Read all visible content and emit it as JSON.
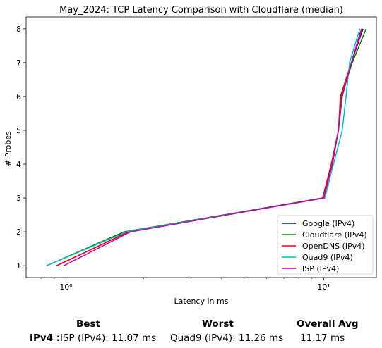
{
  "chart_data": {
    "type": "line",
    "title": "May_2024: TCP Latency Comparison with Cloudflare (median)",
    "xlabel": "Latency in ms",
    "ylabel": "# Probes",
    "xscale": "log",
    "xlim": [
      0.7,
      16
    ],
    "ylim": [
      0.65,
      8.35
    ],
    "xticks": [
      {
        "value": 1,
        "label": "10⁰"
      },
      {
        "value": 10,
        "label": "10¹"
      }
    ],
    "yticks": [
      1,
      2,
      3,
      4,
      5,
      6,
      7,
      8
    ],
    "grid": false,
    "legend_position": "lower-right",
    "series": [
      {
        "name": "Google (IPv4)",
        "color": "#0000cc",
        "points": [
          [
            0.92,
            1
          ],
          [
            1.75,
            2
          ],
          [
            9.9,
            3
          ],
          [
            10.8,
            4
          ],
          [
            11.4,
            5
          ],
          [
            11.7,
            6
          ],
          [
            12.8,
            7
          ],
          [
            14.2,
            8
          ]
        ]
      },
      {
        "name": "Cloudflare (IPv4)",
        "color": "#008000",
        "points": [
          [
            0.84,
            1
          ],
          [
            1.68,
            2
          ],
          [
            9.9,
            3
          ],
          [
            10.7,
            4
          ],
          [
            11.4,
            5
          ],
          [
            11.7,
            6
          ],
          [
            12.9,
            7
          ],
          [
            14.6,
            8
          ]
        ]
      },
      {
        "name": "OpenDNS (IPv4)",
        "color": "#ff0000",
        "points": [
          [
            0.92,
            1
          ],
          [
            1.75,
            2
          ],
          [
            9.9,
            3
          ],
          [
            10.7,
            4
          ],
          [
            11.4,
            5
          ],
          [
            11.6,
            6
          ],
          [
            12.8,
            7
          ],
          [
            14.1,
            8
          ]
        ]
      },
      {
        "name": "Quad9 (IPv4)",
        "color": "#00bfbf",
        "points": [
          [
            0.84,
            1
          ],
          [
            1.72,
            2
          ],
          [
            10.1,
            3
          ],
          [
            10.9,
            4
          ],
          [
            11.8,
            5
          ],
          [
            12.2,
            6
          ],
          [
            12.6,
            7
          ],
          [
            13.8,
            8
          ]
        ]
      },
      {
        "name": "ISP (IPv4)",
        "color": "#bf00bf",
        "points": [
          [
            0.98,
            1
          ],
          [
            1.78,
            2
          ],
          [
            10.0,
            3
          ],
          [
            10.8,
            4
          ],
          [
            11.4,
            5
          ],
          [
            11.8,
            6
          ],
          [
            12.8,
            7
          ],
          [
            14.0,
            8
          ]
        ]
      }
    ]
  },
  "summary": {
    "best_label": "Best",
    "worst_label": "Worst",
    "avg_label": "Overall Avg",
    "row_label": "IPv4 :",
    "best_value": "ISP (IPv4): 11.07 ms",
    "worst_value": "Quad9 (IPv4): 11.26 ms",
    "avg_value": "11.17 ms"
  }
}
